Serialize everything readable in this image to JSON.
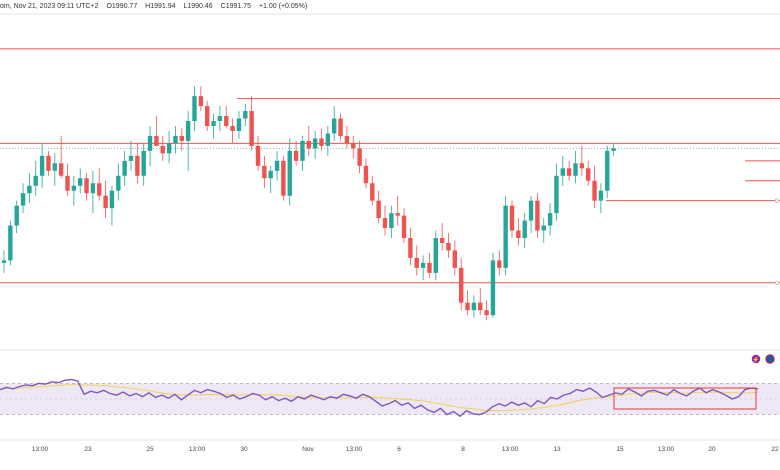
{
  "header": {
    "title": "om, Nov 21, 2023 09:11 UTC+2",
    "open": "O1990.77",
    "high": "H1991.94",
    "low": "L1990.46",
    "close": "C1991.75",
    "change": "+1.00 (+0.05%)"
  },
  "colors": {
    "up": "#26a69a",
    "down": "#ef5350",
    "level": "#ef5350",
    "rsi": "#7e57c2",
    "rsi_ma": "#f4d03f",
    "rsi_band": "#ede7f6",
    "box": "#e53935"
  },
  "chart_data": [
    {
      "type": "candlestick",
      "x_tick_labels": [
        "13:00",
        "23",
        "25",
        "13:00",
        "30",
        "Nov",
        "13:00",
        "6",
        "8",
        "13:00",
        "13",
        "15",
        "13:00",
        "20",
        "22"
      ],
      "ohlc": [
        [
          1935,
          1940,
          1931,
          1936
        ],
        [
          1936,
          1952,
          1934,
          1950
        ],
        [
          1950,
          1960,
          1947,
          1958
        ],
        [
          1958,
          1967,
          1955,
          1963
        ],
        [
          1963,
          1971,
          1959,
          1966
        ],
        [
          1966,
          1976,
          1962,
          1970
        ],
        [
          1970,
          1983,
          1965,
          1978
        ],
        [
          1978,
          1980,
          1970,
          1972
        ],
        [
          1972,
          1979,
          1966,
          1975
        ],
        [
          1975,
          1986,
          1969,
          1970
        ],
        [
          1970,
          1975,
          1962,
          1964
        ],
        [
          1964,
          1970,
          1958,
          1966
        ],
        [
          1966,
          1973,
          1963,
          1969
        ],
        [
          1969,
          1971,
          1960,
          1963
        ],
        [
          1963,
          1972,
          1955,
          1967
        ],
        [
          1967,
          1973,
          1960,
          1962
        ],
        [
          1962,
          1968,
          1953,
          1957
        ],
        [
          1957,
          1966,
          1950,
          1964
        ],
        [
          1964,
          1975,
          1960,
          1970
        ],
        [
          1970,
          1980,
          1966,
          1976
        ],
        [
          1976,
          1984,
          1972,
          1978
        ],
        [
          1978,
          1983,
          1967,
          1970
        ],
        [
          1970,
          1983,
          1966,
          1980
        ],
        [
          1980,
          1990,
          1974,
          1986
        ],
        [
          1986,
          1994,
          1982,
          1982
        ],
        [
          1982,
          1986,
          1976,
          1979
        ],
        [
          1979,
          1988,
          1975,
          1983
        ],
        [
          1983,
          1990,
          1979,
          1986
        ],
        [
          1986,
          1989,
          1980,
          1984
        ],
        [
          1984,
          1996,
          1972,
          1992
        ],
        [
          1992,
          2006,
          1988,
          2002
        ],
        [
          2002,
          2006,
          1996,
          1998
        ],
        [
          1998,
          2000,
          1988,
          1990
        ],
        [
          1990,
          1995,
          1985,
          1992
        ],
        [
          1992,
          1998,
          1988,
          1994
        ],
        [
          1994,
          1998,
          1989,
          1990
        ],
        [
          1990,
          1993,
          1983,
          1988
        ],
        [
          1988,
          1996,
          1985,
          1993
        ],
        [
          1993,
          1999,
          1990,
          1996
        ],
        [
          1996,
          2002,
          1980,
          1982
        ],
        [
          1982,
          1986,
          1972,
          1974
        ],
        [
          1974,
          1978,
          1965,
          1969
        ],
        [
          1969,
          1974,
          1963,
          1972
        ],
        [
          1972,
          1980,
          1968,
          1976
        ],
        [
          1976,
          1978,
          1960,
          1962
        ],
        [
          1962,
          1985,
          1958,
          1980
        ],
        [
          1980,
          1984,
          1974,
          1976
        ],
        [
          1976,
          1986,
          1972,
          1984
        ],
        [
          1984,
          1990,
          1978,
          1981
        ],
        [
          1981,
          1988,
          1977,
          1985
        ],
        [
          1985,
          1989,
          1980,
          1982
        ],
        [
          1982,
          1990,
          1978,
          1987
        ],
        [
          1987,
          1998,
          1984,
          1993
        ],
        [
          1993,
          1995,
          1984,
          1986
        ],
        [
          1986,
          1990,
          1981,
          1983
        ],
        [
          1983,
          1986,
          1977,
          1981
        ],
        [
          1981,
          1984,
          1971,
          1974
        ],
        [
          1974,
          1977,
          1965,
          1967
        ],
        [
          1967,
          1970,
          1958,
          1960
        ],
        [
          1960,
          1964,
          1951,
          1953
        ],
        [
          1953,
          1958,
          1946,
          1949
        ],
        [
          1949,
          1958,
          1945,
          1955
        ],
        [
          1955,
          1962,
          1950,
          1954
        ],
        [
          1954,
          1957,
          1943,
          1945
        ],
        [
          1945,
          1949,
          1934,
          1937
        ],
        [
          1937,
          1942,
          1930,
          1933
        ],
        [
          1933,
          1938,
          1928,
          1935
        ],
        [
          1935,
          1939,
          1929,
          1931
        ],
        [
          1931,
          1948,
          1928,
          1945
        ],
        [
          1945,
          1951,
          1940,
          1943
        ],
        [
          1943,
          1947,
          1937,
          1940
        ],
        [
          1940,
          1944,
          1930,
          1933
        ],
        [
          1933,
          1937,
          1916,
          1919
        ],
        [
          1919,
          1924,
          1914,
          1916
        ],
        [
          1916,
          1922,
          1913,
          1919
        ],
        [
          1919,
          1925,
          1914,
          1916
        ],
        [
          1916,
          1920,
          1912,
          1914
        ],
        [
          1914,
          1939,
          1913,
          1936
        ],
        [
          1936,
          1940,
          1930,
          1933
        ],
        [
          1933,
          1962,
          1930,
          1958
        ],
        [
          1958,
          1960,
          1945,
          1948
        ],
        [
          1948,
          1953,
          1942,
          1945
        ],
        [
          1945,
          1955,
          1941,
          1952
        ],
        [
          1952,
          1962,
          1947,
          1960
        ],
        [
          1960,
          1963,
          1945,
          1948
        ],
        [
          1948,
          1953,
          1943,
          1950
        ],
        [
          1950,
          1959,
          1946,
          1955
        ],
        [
          1955,
          1975,
          1952,
          1970
        ],
        [
          1970,
          1978,
          1966,
          1973
        ],
        [
          1973,
          1976,
          1968,
          1970
        ],
        [
          1970,
          1980,
          1967,
          1975
        ],
        [
          1975,
          1982,
          1970,
          1973
        ],
        [
          1973,
          1976,
          1966,
          1968
        ],
        [
          1968,
          1974,
          1957,
          1960
        ],
        [
          1960,
          1967,
          1955,
          1964
        ],
        [
          1964,
          1982,
          1961,
          1980
        ],
        [
          1980,
          1983,
          1978,
          1981
        ]
      ],
      "levels": [
        2021,
        2001,
        1983,
        1960,
        1927
      ],
      "short_levels": [
        1976,
        1968
      ]
    },
    {
      "type": "line",
      "name": "RSI",
      "ylim": [
        0,
        100
      ],
      "band": [
        30,
        70
      ],
      "values": [
        62,
        65,
        63,
        66,
        68,
        67,
        70,
        69,
        72,
        71,
        74,
        75,
        73,
        56,
        60,
        58,
        61,
        57,
        55,
        59,
        54,
        57,
        53,
        58,
        52,
        55,
        51,
        56,
        49,
        55,
        61,
        58,
        62,
        60,
        57,
        52,
        55,
        50,
        53,
        57,
        55,
        49,
        53,
        48,
        51,
        47,
        53,
        50,
        55,
        52,
        49,
        53,
        51,
        56,
        54,
        51,
        56,
        53,
        47,
        41,
        44,
        48,
        42,
        45,
        38,
        42,
        36,
        33,
        38,
        30,
        34,
        28,
        35,
        31,
        30,
        33,
        40,
        44,
        41,
        46,
        42,
        45,
        40,
        48,
        44,
        52,
        50,
        55,
        57,
        62,
        60,
        64,
        59,
        52,
        55,
        58,
        56,
        63,
        59,
        54,
        60,
        61,
        58,
        55,
        62,
        57,
        54,
        60,
        64,
        58,
        62,
        59,
        55,
        50,
        53,
        62,
        64,
        63
      ]
    }
  ]
}
